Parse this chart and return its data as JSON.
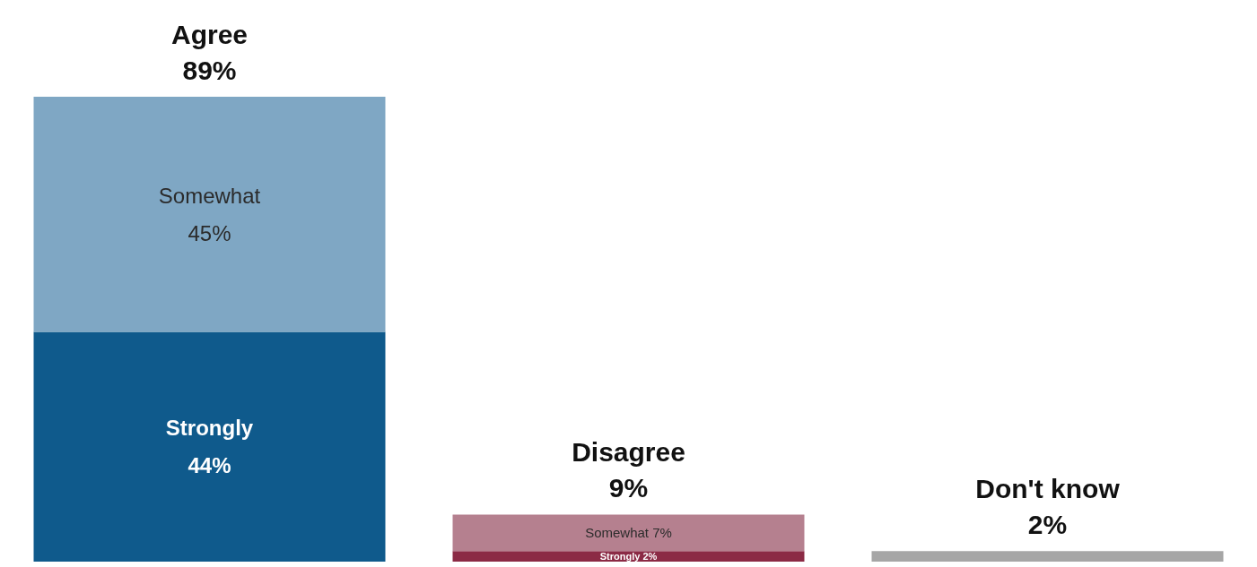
{
  "chart_data": {
    "type": "bar",
    "stacked": true,
    "categories": [
      "Agree",
      "Disagree",
      "Don't know"
    ],
    "totals": [
      "89%",
      "9%",
      "2%"
    ],
    "series": [
      {
        "colors": [
          "#0f5a8c",
          "#8b2a45",
          "#a6a6a6"
        ],
        "values": [
          44,
          2,
          null
        ],
        "value_labels": [
          "Strongly\n44%",
          "Strongly 2%",
          null
        ]
      },
      {
        "colors": [
          "#7fa7c4",
          "#b5808f",
          "#a6a6a6"
        ],
        "values": [
          45,
          7,
          null
        ],
        "value_labels": [
          "Somewhat\n45%",
          "Somewhat 7%",
          null
        ]
      },
      {
        "colors": [
          "#a6a6a6",
          "#a6a6a6",
          "#a6a6a6"
        ],
        "values": [
          null,
          null,
          2
        ],
        "value_labels": [
          null,
          null,
          null
        ]
      }
    ],
    "grid": false
  }
}
